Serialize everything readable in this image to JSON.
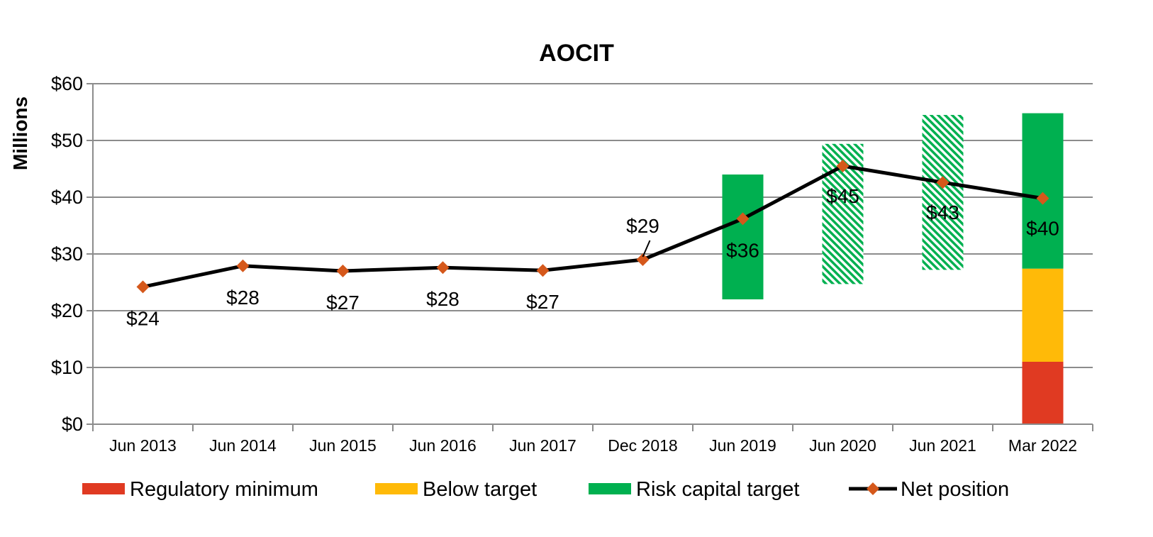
{
  "chart_data": {
    "type": "line",
    "title": "AOCIT",
    "ylabel": "Millions",
    "xlabel": "",
    "ylim": [
      0,
      60
    ],
    "yticks": [
      0,
      10,
      20,
      30,
      40,
      50,
      60
    ],
    "ytick_labels": [
      "$0",
      "$10",
      "$20",
      "$30",
      "$40",
      "$50",
      "$60"
    ],
    "categories": [
      "Jun 2013",
      "Jun 2014",
      "Jun 2015",
      "Jun 2016",
      "Jun 2017",
      "Dec 2018",
      "Jun 2019",
      "Jun 2020",
      "Jun 2021",
      "Mar 2022"
    ],
    "grid": true,
    "legend_position": "bottom",
    "colors": {
      "regulatory_minimum": "#e03a22",
      "below_target": "#ffba08",
      "risk_capital_target": "#00b050",
      "net_position_line": "#000000",
      "net_position_marker": "#d5581b"
    },
    "net_position": {
      "name": "Net position",
      "values": [
        24.2,
        27.9,
        27.0,
        27.6,
        27.1,
        29.0,
        36.2,
        45.5,
        42.6,
        39.8
      ],
      "labels": [
        "$24",
        "$28",
        "$27",
        "$28",
        "$27",
        "$29",
        "$36",
        "$45",
        "$43",
        "$40"
      ]
    },
    "risk_capital_target_bands": [
      {
        "category": "Jun 2019",
        "low": 22.0,
        "high": 44.0,
        "style": "solid"
      },
      {
        "category": "Jun 2020",
        "low": 24.7,
        "high": 49.4,
        "style": "hatched"
      },
      {
        "category": "Jun 2021",
        "low": 27.2,
        "high": 54.5,
        "style": "hatched"
      },
      {
        "category": "Mar 2022",
        "low": 27.4,
        "high": 54.8,
        "style": "solid"
      }
    ],
    "stacked_bar": {
      "category": "Mar 2022",
      "regulatory_minimum": [
        0,
        11.0
      ],
      "below_target": [
        11.0,
        27.4
      ]
    },
    "legend": [
      {
        "key": "regulatory_minimum",
        "label": "Regulatory minimum"
      },
      {
        "key": "below_target",
        "label": "Below target"
      },
      {
        "key": "risk_capital_target",
        "label": "Risk capital target"
      },
      {
        "key": "net_position",
        "label": "Net position"
      }
    ]
  }
}
